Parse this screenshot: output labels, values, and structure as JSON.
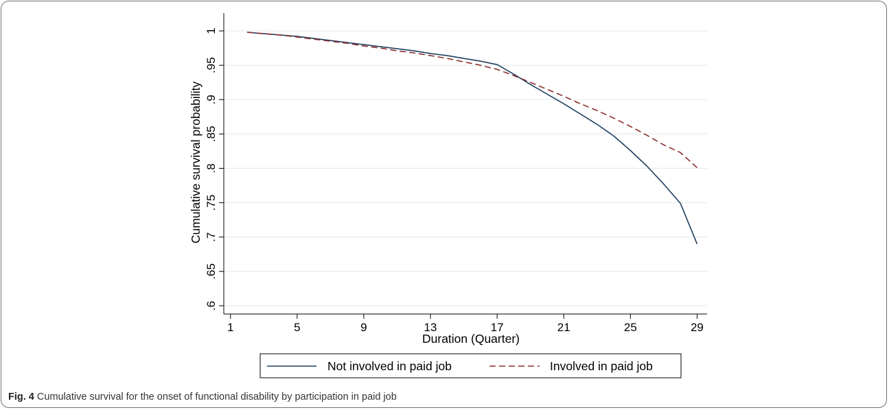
{
  "chart_data": {
    "type": "line",
    "title": "",
    "xlabel": "Duration (Quarter)",
    "ylabel": "Cumulative survival probability",
    "xlim": [
      0.6,
      29.6
    ],
    "ylim": [
      0.588,
      1.026
    ],
    "xticks": [
      1,
      5,
      9,
      13,
      17,
      21,
      25,
      29
    ],
    "xtick_labels": [
      "1",
      "5",
      "9",
      "13",
      "17",
      "21",
      "25",
      "29"
    ],
    "yticks": [
      0.6,
      0.65,
      0.7,
      0.75,
      0.8,
      0.85,
      0.9,
      0.95,
      1.0
    ],
    "ytick_labels": [
      ".6",
      ".65",
      ".7",
      ".75",
      ".8",
      ".85",
      ".9",
      ".95",
      "1"
    ],
    "grid": true,
    "legend_position": "bottom",
    "series": [
      {
        "name": "Not involved in paid job",
        "color": "#1f3f5e",
        "dash": "solid",
        "x": [
          2,
          3,
          4,
          5,
          6,
          7,
          8,
          9,
          10,
          11,
          12,
          13,
          14,
          15,
          16,
          17,
          18,
          19,
          20,
          21,
          22,
          23,
          24,
          25,
          26,
          27,
          28,
          29
        ],
        "y": [
          0.998,
          0.996,
          0.994,
          0.992,
          0.989,
          0.986,
          0.983,
          0.98,
          0.977,
          0.974,
          0.971,
          0.967,
          0.964,
          0.96,
          0.956,
          0.951,
          0.937,
          0.922,
          0.908,
          0.894,
          0.879,
          0.864,
          0.847,
          0.826,
          0.803,
          0.777,
          0.749,
          0.69
        ]
      },
      {
        "name": "Involved in paid job",
        "color": "#8c2d2d",
        "dash": "dashed",
        "x": [
          2,
          3,
          4,
          5,
          6,
          7,
          8,
          9,
          10,
          11,
          12,
          13,
          14,
          15,
          16,
          17,
          18,
          19,
          20,
          21,
          22,
          23,
          24,
          25,
          26,
          27,
          28,
          29
        ],
        "y": [
          0.998,
          0.996,
          0.994,
          0.991,
          0.988,
          0.985,
          0.982,
          0.978,
          0.975,
          0.971,
          0.968,
          0.964,
          0.96,
          0.955,
          0.95,
          0.944,
          0.935,
          0.925,
          0.915,
          0.905,
          0.894,
          0.884,
          0.873,
          0.861,
          0.848,
          0.834,
          0.823,
          0.801
        ]
      }
    ]
  },
  "caption": {
    "label": "Fig. 4",
    "text": " Cumulative survival for the onset of functional disability by participation in paid job"
  }
}
